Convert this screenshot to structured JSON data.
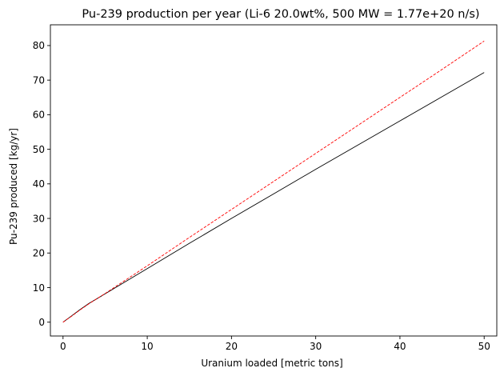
{
  "chart_data": {
    "type": "line",
    "title": "Pu-239 production per year (Li-6 20.0wt%, 500 MW = 1.77e+20 n/s)",
    "xlabel": "Uranium loaded [metric tons]",
    "ylabel": "Pu-239 produced [kg/yr]",
    "xlim": [
      -1.5,
      51.5
    ],
    "ylim": [
      -4,
      86
    ],
    "xticks": [
      0,
      10,
      20,
      30,
      40,
      50
    ],
    "yticks": [
      0,
      10,
      20,
      30,
      40,
      50,
      60,
      70,
      80
    ],
    "grid": false,
    "series": [
      {
        "color": "#000000",
        "style": "solid",
        "x": [
          0,
          1,
          2,
          3,
          5,
          10,
          15,
          20,
          25,
          30,
          35,
          40,
          45,
          50
        ],
        "y": [
          0,
          1.8,
          3.6,
          5.3,
          8.2,
          15.5,
          22.8,
          30.0,
          37.1,
          44.2,
          51.2,
          58.2,
          65.2,
          72.2
        ]
      },
      {
        "color": "#ff0000",
        "style": "dashed",
        "x": [
          0,
          1,
          2,
          3,
          5,
          10,
          15,
          20,
          25,
          30,
          35,
          40,
          45,
          50
        ],
        "y": [
          0,
          1.7,
          3.5,
          5.2,
          8.3,
          16.3,
          24.5,
          32.6,
          40.7,
          48.8,
          56.9,
          65.0,
          73.1,
          81.3
        ]
      }
    ]
  }
}
